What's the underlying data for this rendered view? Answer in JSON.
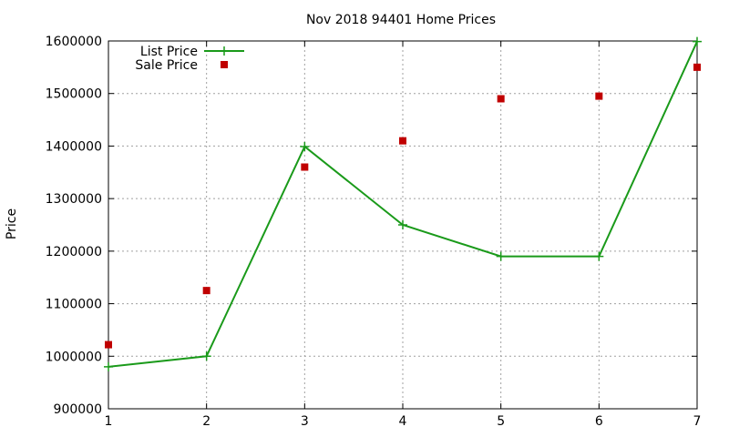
{
  "chart_data": {
    "type": "line",
    "title": "Nov 2018 94401 Home Prices",
    "xlabel": "",
    "ylabel": "Price",
    "x": [
      1,
      2,
      3,
      4,
      5,
      6,
      7
    ],
    "xlim": [
      1,
      7
    ],
    "ylim": [
      900000,
      1600000
    ],
    "xticks": [
      "1",
      "2",
      "3",
      "4",
      "5",
      "6",
      "7"
    ],
    "yticks": [
      "900000",
      "1000000",
      "1100000",
      "1200000",
      "1300000",
      "1400000",
      "1500000",
      "1600000"
    ],
    "grid": true,
    "legend_position": "top-left",
    "series": [
      {
        "name": "List Price",
        "kind": "line-with-plus-markers",
        "color": "#1a9a1a",
        "values": [
          980000,
          1000000,
          1399000,
          1250000,
          1190000,
          1190000,
          1599000
        ]
      },
      {
        "name": "Sale Price",
        "kind": "square-markers",
        "color": "#c00000",
        "values": [
          1022000,
          1125000,
          1360000,
          1410000,
          1490000,
          1495000,
          1550000
        ]
      }
    ]
  }
}
